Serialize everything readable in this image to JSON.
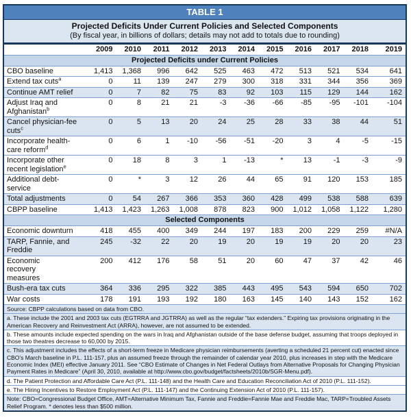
{
  "table": {
    "title": "TABLE 1",
    "subtitle": "Projected Deficits Under Current Policies and Selected Components",
    "units_line": "(By fiscal year, in billions of dollars; details may not add to totals due to rounding)",
    "years": [
      "2009",
      "2010",
      "2011",
      "2012",
      "2013",
      "2014",
      "2015",
      "2016",
      "2017",
      "2018",
      "2019"
    ],
    "sections": [
      {
        "header": "Projected Deficits under Current Policies",
        "rows": [
          {
            "label": "CBO baseline",
            "sup": "",
            "shaded": false,
            "values": [
              "1,413",
              "1,368",
              "996",
              "642",
              "525",
              "463",
              "472",
              "513",
              "521",
              "534",
              "641"
            ]
          },
          {
            "label": "Extend tax cuts",
            "sup": "a",
            "shaded": false,
            "values": [
              "0",
              "11",
              "139",
              "247",
              "279",
              "300",
              "318",
              "331",
              "344",
              "356",
              "369"
            ]
          },
          {
            "label": "Continue AMT relief",
            "sup": "",
            "shaded": true,
            "values": [
              "0",
              "7",
              "82",
              "75",
              "83",
              "92",
              "103",
              "115",
              "129",
              "144",
              "162"
            ]
          },
          {
            "label": "Adjust Iraq and\nAfghanistan",
            "sup": "b",
            "shaded": false,
            "values": [
              "0",
              "8",
              "21",
              "21",
              "-3",
              "-36",
              "-66",
              "-85",
              "-95",
              "-101",
              "-104"
            ]
          },
          {
            "label": "Cancel physician-fee\ncuts",
            "sup": "c",
            "shaded": true,
            "values": [
              "0",
              "5",
              "13",
              "20",
              "24",
              "25",
              "28",
              "33",
              "38",
              "44",
              "51"
            ]
          },
          {
            "label": "Incorporate health-\ncare reform",
            "sup": "d",
            "shaded": false,
            "values": [
              "0",
              "6",
              "1",
              "-10",
              "-56",
              "-51",
              "-20",
              "3",
              "4",
              "-5",
              "-15"
            ]
          },
          {
            "label": "Incorporate other\nrecent legislation",
            "sup": "e",
            "shaded": false,
            "values": [
              "0",
              "18",
              "8",
              "3",
              "1",
              "-13",
              "*",
              "13",
              "-1",
              "-3",
              "-9"
            ]
          },
          {
            "label": "Additional debt-\nservice",
            "sup": "",
            "shaded": false,
            "values": [
              "0",
              "*",
              "3",
              "12",
              "26",
              "44",
              "65",
              "91",
              "120",
              "153",
              "185"
            ]
          },
          {
            "label": "Total adjustments",
            "sup": "",
            "shaded": true,
            "values": [
              "0",
              "54",
              "267",
              "366",
              "353",
              "360",
              "428",
              "499",
              "538",
              "588",
              "639"
            ]
          },
          {
            "label": "CBPP baseline",
            "sup": "",
            "shaded": false,
            "values": [
              "1,413",
              "1,423",
              "1,263",
              "1,008",
              "878",
              "823",
              "900",
              "1,012",
              "1,058",
              "1,122",
              "1,280"
            ]
          }
        ]
      },
      {
        "header": "Selected Components",
        "rows": [
          {
            "label": "Economic downturn",
            "sup": "",
            "shaded": false,
            "values": [
              "418",
              "455",
              "400",
              "349",
              "244",
              "197",
              "183",
              "200",
              "229",
              "259",
              "#N/A"
            ]
          },
          {
            "label": "TARP, Fannie, and\nFreddie",
            "sup": "",
            "shaded": true,
            "values": [
              "245",
              "-32",
              "22",
              "20",
              "19",
              "20",
              "19",
              "19",
              "20",
              "20",
              "23"
            ]
          },
          {
            "label": "Economic\nrecovery\nmeasures",
            "sup": "",
            "shaded": false,
            "values": [
              "200",
              "412",
              "176",
              "58",
              "51",
              "20",
              "60",
              "47",
              "37",
              "42",
              "46"
            ]
          },
          {
            "label": "Bush-era tax cuts",
            "sup": "",
            "shaded": true,
            "values": [
              "364",
              "336",
              "295",
              "322",
              "385",
              "443",
              "495",
              "543",
              "594",
              "650",
              "702"
            ]
          },
          {
            "label": "War costs",
            "sup": "",
            "shaded": false,
            "values": [
              "178",
              "191",
              "193",
              "192",
              "180",
              "163",
              "145",
              "140",
              "143",
              "152",
              "162"
            ]
          }
        ]
      }
    ],
    "footnotes": [
      {
        "shaded": true,
        "text": "Source:  CBPP calculations based on data from CBO."
      },
      {
        "shaded": true,
        "text": "a.  These include the 2001 and 2003 tax cuts (EGTRRA and JGTRRA) as well as the regular “tax extenders.”  Expiring tax provisions originating in the American Recovery and Reinvestment Act (ARRA), however, are not assumed to be extended."
      },
      {
        "shaded": false,
        "text": "b.  These amounts include expected spending on the wars in Iraq and Afghanistan outside of the base defense budget, assuming that troops deployed in those two theatres decrease to 60,000 by 2015."
      },
      {
        "shaded": true,
        "text": "c.  This adjustment includes the effects of a short-term freeze in Medicare physician reimbursements (averting a scheduled 21 percent cut) enacted since CBO’s March baseline in P.L. 111-157, plus an assumed freeze through the remainder of calendar year 2010, plus increases in step with the Medicare Economic Index (MEI) effective January 2011.  See “CBO Estimate of Changes in Net Federal Outlays from Alternative Proposals for Changing Physician Payment Rates in Medicare” (April 30, 2010, available at http://www.cbo.gov/budget/factsheets/2010b/SGR-Menu.pdf)."
      },
      {
        "shaded": false,
        "text": "d.  The Patient Protection and Affordable Care Act (P.L. 111-148) and the Health Care and Education Reconciliation Act of 2010 (P.L. 111-152)."
      },
      {
        "shaded": false,
        "text": "e.  The Hiring Incentives to Restore Employment Act (P.L. 111-147) and the Continuing Extension Act of 2010 (P.L. 111-157)."
      },
      {
        "shaded": true,
        "text": "Note:  CBO=Congressional Budget Office, AMT=Alternative Minimum Tax, Fannie and Freddie=Fannie Mae and Freddie Mac, TARP=Troubled Assets Relief Program.  * denotes less than $500 million."
      }
    ]
  }
}
